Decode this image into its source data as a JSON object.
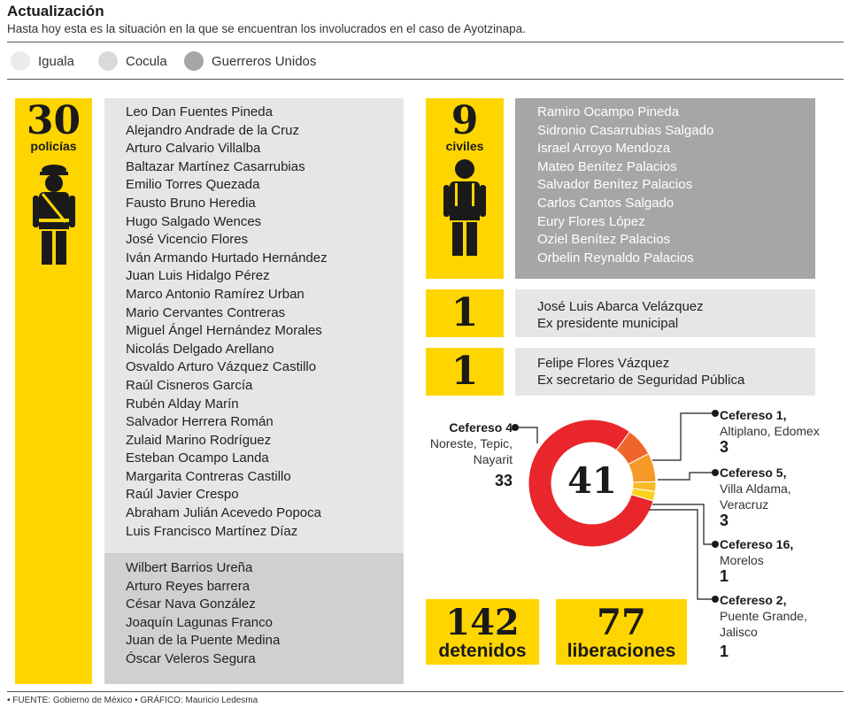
{
  "header": {
    "title": "Actualización",
    "subtitle": "Hasta hoy esta es la situación en la que se encuentran los involucrados en el caso de Ayotzinapa."
  },
  "legend": [
    {
      "label": "Iguala",
      "color": "#ebebeb"
    },
    {
      "label": "Cocula",
      "color": "#d9d9d9"
    },
    {
      "label": "Guerreros Unidos",
      "color": "#a6a6a6"
    }
  ],
  "police": {
    "count": "30",
    "label": "policías",
    "icon": "police-officer-icon",
    "iguala": [
      "Leo Dan Fuentes Pineda",
      "Alejandro Andrade de la Cruz",
      "Arturo Calvario Villalba",
      "Baltazar Martínez Casarrubias",
      "Emilio Torres Quezada",
      "Fausto Bruno Heredia",
      "Hugo Salgado Wences",
      "José Vicencio Flores",
      "Iván Armando Hurtado Hernández",
      "Juan Luis Hidalgo Pérez",
      "Marco Antonio Ramírez Urban",
      "Mario Cervantes Contreras",
      "Miguel Ángel Hernández Morales",
      "Nicolás Delgado Arellano",
      "Osvaldo Arturo Vázquez Castillo",
      "Raúl Cisneros García",
      "Rubén Alday Marín",
      "Salvador Herrera Román",
      "Zulaid Marino Rodríguez",
      "Esteban Ocampo Landa",
      "Margarita Contreras Castillo",
      "Raúl Javier Crespo",
      "Abraham Julián Acevedo Popoca",
      "Luis Francisco Martínez Díaz"
    ],
    "cocula": [
      "Wilbert Barrios Ureña",
      "Arturo Reyes barrera",
      "César Nava González",
      "Joaquín Lagunas Franco",
      "Juan de la Puente Medina",
      "Óscar Veleros Segura"
    ]
  },
  "civilians": {
    "count": "9",
    "label": "civiles",
    "icon": "civilian-person-icon",
    "names": [
      "Ramiro Ocampo Pineda",
      "Sidronio Casarrubias Salgado",
      "Israel Arroyo Mendoza",
      "Mateo Benítez Palacios",
      "Salvador Benítez Palacios",
      "Carlos Cantos Salgado",
      "Eury Flores López",
      "Oziel Benítez Palacios",
      "Orbelin Reynaldo Palacios"
    ]
  },
  "officials": [
    {
      "count": "1",
      "name": "José Luis Abarca Velázquez",
      "role": "Ex presidente municipal"
    },
    {
      "count": "1",
      "name": "Felipe Flores Vázquez",
      "role": "Ex secretario de Seguridad Pública"
    }
  ],
  "chart_data": {
    "type": "pie",
    "donut": true,
    "total": "41",
    "slices": [
      {
        "name": "Cefereso 4",
        "location": "Noreste, Tepic, Nayarit",
        "value": 33,
        "color": "#e8262b"
      },
      {
        "name": "Cefereso 1,",
        "location": "Altiplano, Edomex",
        "value": 3,
        "color": "#f0652a"
      },
      {
        "name": "Cefereso 5,",
        "location": "Villa Aldama, Veracruz",
        "value": 3,
        "color": "#f59a28"
      },
      {
        "name": "Cefereso 16,",
        "location": "Morelos",
        "value": 1,
        "color": "#f7b924"
      },
      {
        "name": "Cefereso 2,",
        "location": "Puente Grande, Jalisco",
        "value": 1,
        "color": "#fbd31c"
      }
    ]
  },
  "totals": [
    {
      "value": "142",
      "label": "detenidos"
    },
    {
      "value": "77",
      "label": "liberaciones"
    }
  ],
  "footer": "• FUENTE: Gobierno de México • GRÁFICO: Mauricio Ledesma"
}
